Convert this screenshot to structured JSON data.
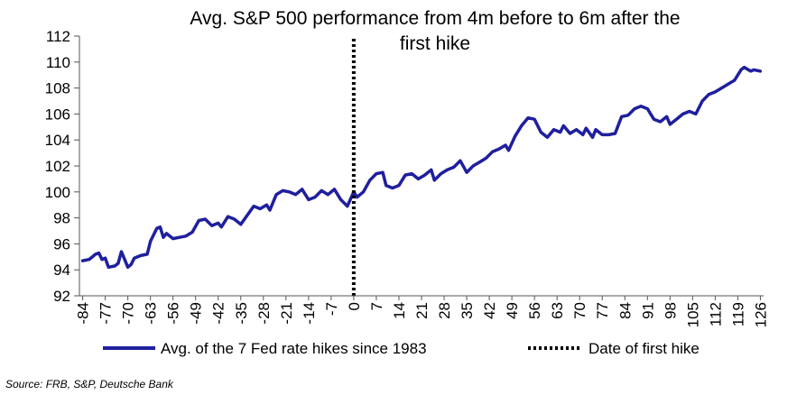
{
  "chart_data": {
    "type": "line",
    "title_lines": [
      "Avg. S&P 500 performance from 4m before to 6m after the",
      "first hike"
    ],
    "xlabel": "",
    "ylabel": "",
    "xlim": [
      -85,
      127
    ],
    "ylim": [
      92,
      112
    ],
    "y_ticks": [
      92,
      94,
      96,
      98,
      100,
      102,
      104,
      106,
      108,
      110,
      112
    ],
    "x_ticks": [
      -84,
      -77,
      -70,
      -63,
      -56,
      -49,
      -42,
      -35,
      -28,
      -21,
      -14,
      -7,
      0,
      7,
      14,
      21,
      28,
      35,
      42,
      49,
      56,
      63,
      70,
      77,
      84,
      91,
      98,
      105,
      112,
      119,
      126
    ],
    "grid": false,
    "legend_position": "bottom",
    "series": [
      {
        "name": "Avg. of the 7 Fed rate hikes since 1983",
        "color": "#1f1f9e",
        "style": "solid",
        "points": [
          [
            -84,
            94.7
          ],
          [
            -82,
            94.8
          ],
          [
            -80,
            95.2
          ],
          [
            -79,
            95.3
          ],
          [
            -78,
            94.8
          ],
          [
            -77,
            94.9
          ],
          [
            -76,
            94.2
          ],
          [
            -74,
            94.3
          ],
          [
            -73,
            94.5
          ],
          [
            -72,
            95.4
          ],
          [
            -71,
            94.8
          ],
          [
            -70,
            94.2
          ],
          [
            -69,
            94.4
          ],
          [
            -68,
            94.9
          ],
          [
            -66,
            95.1
          ],
          [
            -64,
            95.2
          ],
          [
            -63,
            96.2
          ],
          [
            -61,
            97.2
          ],
          [
            -60,
            97.3
          ],
          [
            -59,
            96.5
          ],
          [
            -58,
            96.8
          ],
          [
            -56,
            96.4
          ],
          [
            -54,
            96.5
          ],
          [
            -52,
            96.6
          ],
          [
            -50,
            96.9
          ],
          [
            -48,
            97.8
          ],
          [
            -46,
            97.9
          ],
          [
            -44,
            97.4
          ],
          [
            -42,
            97.6
          ],
          [
            -41,
            97.3
          ],
          [
            -39,
            98.1
          ],
          [
            -37,
            97.9
          ],
          [
            -35,
            97.5
          ],
          [
            -33,
            98.2
          ],
          [
            -31,
            98.9
          ],
          [
            -29,
            98.7
          ],
          [
            -27,
            99.0
          ],
          [
            -26,
            98.6
          ],
          [
            -24,
            99.8
          ],
          [
            -22,
            100.1
          ],
          [
            -20,
            100.0
          ],
          [
            -18,
            99.8
          ],
          [
            -16,
            100.2
          ],
          [
            -14,
            99.4
          ],
          [
            -12,
            99.6
          ],
          [
            -10,
            100.1
          ],
          [
            -8,
            99.8
          ],
          [
            -6,
            100.2
          ],
          [
            -4,
            99.4
          ],
          [
            -2,
            98.9
          ],
          [
            0,
            100.0
          ],
          [
            1,
            99.6
          ],
          [
            3,
            100.0
          ],
          [
            5,
            100.9
          ],
          [
            7,
            101.4
          ],
          [
            9,
            101.5
          ],
          [
            10,
            100.5
          ],
          [
            12,
            100.3
          ],
          [
            14,
            100.5
          ],
          [
            16,
            101.3
          ],
          [
            18,
            101.4
          ],
          [
            20,
            101.0
          ],
          [
            22,
            101.3
          ],
          [
            24,
            101.7
          ],
          [
            25,
            100.9
          ],
          [
            27,
            101.4
          ],
          [
            29,
            101.7
          ],
          [
            31,
            101.9
          ],
          [
            33,
            102.4
          ],
          [
            35,
            101.5
          ],
          [
            37,
            102.0
          ],
          [
            39,
            102.3
          ],
          [
            41,
            102.6
          ],
          [
            43,
            103.1
          ],
          [
            45,
            103.3
          ],
          [
            47,
            103.6
          ],
          [
            48,
            103.2
          ],
          [
            50,
            104.3
          ],
          [
            52,
            105.1
          ],
          [
            54,
            105.7
          ],
          [
            56,
            105.6
          ],
          [
            58,
            104.6
          ],
          [
            60,
            104.2
          ],
          [
            62,
            104.8
          ],
          [
            64,
            104.6
          ],
          [
            65,
            105.1
          ],
          [
            67,
            104.5
          ],
          [
            69,
            104.8
          ],
          [
            71,
            104.4
          ],
          [
            72,
            104.9
          ],
          [
            74,
            104.2
          ],
          [
            75,
            104.8
          ],
          [
            77,
            104.4
          ],
          [
            79,
            104.4
          ],
          [
            81,
            104.5
          ],
          [
            83,
            105.8
          ],
          [
            85,
            105.9
          ],
          [
            87,
            106.4
          ],
          [
            89,
            106.6
          ],
          [
            91,
            106.4
          ],
          [
            93,
            105.6
          ],
          [
            95,
            105.4
          ],
          [
            97,
            105.8
          ],
          [
            98,
            105.2
          ],
          [
            100,
            105.6
          ],
          [
            102,
            106.0
          ],
          [
            104,
            106.2
          ],
          [
            106,
            106.0
          ],
          [
            108,
            107.0
          ],
          [
            110,
            107.5
          ],
          [
            112,
            107.7
          ],
          [
            114,
            108.0
          ],
          [
            116,
            108.3
          ],
          [
            118,
            108.6
          ],
          [
            120,
            109.4
          ],
          [
            121,
            109.6
          ],
          [
            123,
            109.3
          ],
          [
            124,
            109.4
          ],
          [
            126,
            109.3
          ]
        ]
      },
      {
        "name": "Date of first hike",
        "color": "#000000",
        "style": "dotted",
        "points": [
          [
            0,
            92
          ],
          [
            0,
            112
          ]
        ]
      }
    ],
    "source_text": "Source: FRB, S&P, Deutsche Bank"
  }
}
